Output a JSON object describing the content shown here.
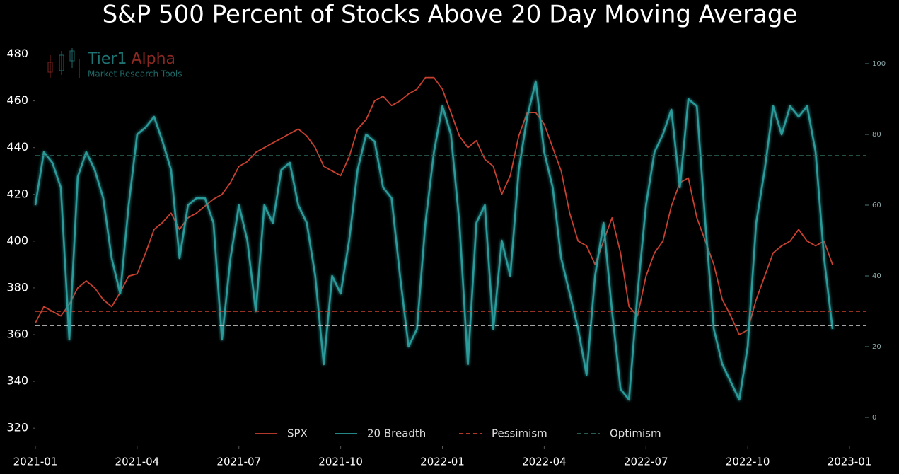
{
  "chart_data": {
    "type": "line",
    "title": "S&P 500 Percent of Stocks Above 20 Day Moving Average",
    "watermark": {
      "brand": "Tier1",
      "brand_accent": "Alpha",
      "tagline": "Market Research Tools"
    },
    "x": [
      0,
      0.25,
      0.5,
      0.75,
      1,
      1.25,
      1.5,
      1.75,
      2,
      2.25,
      2.5,
      2.75,
      3,
      3.25,
      3.5,
      3.75,
      4,
      4.25,
      4.5,
      4.75,
      5,
      5.25,
      5.5,
      5.75,
      6,
      6.25,
      6.5,
      6.75,
      7,
      7.25,
      7.5,
      7.75,
      8,
      8.25,
      8.5,
      8.75,
      9,
      9.25,
      9.5,
      9.75,
      10,
      10.25,
      10.5,
      10.75,
      11,
      11.25,
      11.5,
      11.75,
      12,
      12.25,
      12.5,
      12.75,
      13,
      13.25,
      13.5,
      13.75,
      14,
      14.25,
      14.5,
      14.75,
      15,
      15.25,
      15.5,
      15.75,
      16,
      16.25,
      16.5,
      16.75,
      17,
      17.25,
      17.5,
      17.75,
      18,
      18.25,
      18.5,
      18.75,
      19,
      19.25,
      19.5,
      19.75,
      20,
      20.25,
      20.5,
      20.75,
      21,
      21.25,
      21.5,
      21.75,
      22,
      22.25,
      22.5,
      22.75,
      23,
      23.25,
      23.5
    ],
    "series": [
      {
        "name": "SPX",
        "color": "#c8402f",
        "axis": "y",
        "values": [
          365,
          372,
          370,
          368,
          373,
          380,
          383,
          380,
          375,
          372,
          378,
          385,
          386,
          395,
          405,
          408,
          412,
          405,
          410,
          412,
          415,
          418,
          420,
          425,
          432,
          434,
          438,
          440,
          442,
          444,
          446,
          448,
          445,
          440,
          432,
          430,
          428,
          436,
          448,
          452,
          460,
          462,
          458,
          460,
          463,
          465,
          470,
          470,
          465,
          455,
          445,
          440,
          443,
          435,
          432,
          420,
          428,
          445,
          455,
          455,
          450,
          440,
          430,
          412,
          400,
          398,
          390,
          400,
          410,
          395,
          372,
          368,
          385,
          395,
          400,
          415,
          425,
          427,
          410,
          400,
          390,
          375,
          368,
          360,
          362,
          375,
          385,
          395,
          398,
          400,
          405,
          400,
          398,
          400,
          390
        ]
      },
      {
        "name": "20 Breadth",
        "color": "#2a9a9a",
        "axis": "y2",
        "values": [
          60,
          75,
          72,
          65,
          22,
          68,
          75,
          70,
          62,
          45,
          35,
          60,
          80,
          82,
          85,
          78,
          70,
          45,
          60,
          62,
          62,
          55,
          22,
          45,
          60,
          50,
          30,
          60,
          55,
          70,
          72,
          60,
          55,
          40,
          15,
          40,
          35,
          50,
          70,
          80,
          78,
          65,
          62,
          40,
          20,
          25,
          55,
          75,
          88,
          80,
          55,
          15,
          55,
          60,
          25,
          50,
          40,
          70,
          85,
          95,
          75,
          65,
          45,
          35,
          25,
          12,
          40,
          55,
          30,
          8,
          5,
          35,
          60,
          75,
          80,
          87,
          65,
          90,
          88,
          55,
          25,
          15,
          10,
          5,
          20,
          55,
          70,
          88,
          80,
          88,
          85,
          88,
          75,
          45,
          25
        ]
      }
    ],
    "hlines": [
      {
        "name": "Pessimism",
        "value": 30,
        "axis": "y2",
        "color": "#c8402f"
      },
      {
        "name": "Optimism",
        "value": 74,
        "axis": "y2",
        "color": "#2e6a5c"
      },
      {
        "value": 26,
        "axis": "y2",
        "color": "#d8d8d8"
      }
    ],
    "xlim": [
      0,
      24.5
    ],
    "xticks": [
      {
        "value": 0,
        "label": "2021-01"
      },
      {
        "value": 3,
        "label": "2021-04"
      },
      {
        "value": 6,
        "label": "2021-07"
      },
      {
        "value": 9,
        "label": "2021-10"
      },
      {
        "value": 12,
        "label": "2022-01"
      },
      {
        "value": 15,
        "label": "2022-04"
      },
      {
        "value": 18,
        "label": "2022-07"
      },
      {
        "value": 21,
        "label": "2022-10"
      },
      {
        "value": 24,
        "label": "2023-01"
      }
    ],
    "ylim": [
      314,
      485
    ],
    "yticks": [
      320,
      340,
      360,
      380,
      400,
      420,
      440,
      460,
      480
    ],
    "y2lim": [
      -7,
      106
    ],
    "y2ticks": [
      0,
      20,
      40,
      60,
      80,
      100
    ],
    "legend": "bottom"
  }
}
